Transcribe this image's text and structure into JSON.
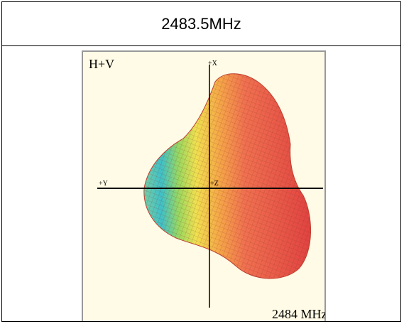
{
  "header": {
    "title": "2483.5MHz"
  },
  "figure": {
    "label": "H+V",
    "axis_x": "+X",
    "axis_y": "+Y",
    "axis_z": "+Z",
    "frequency": "2484 MHz"
  }
}
